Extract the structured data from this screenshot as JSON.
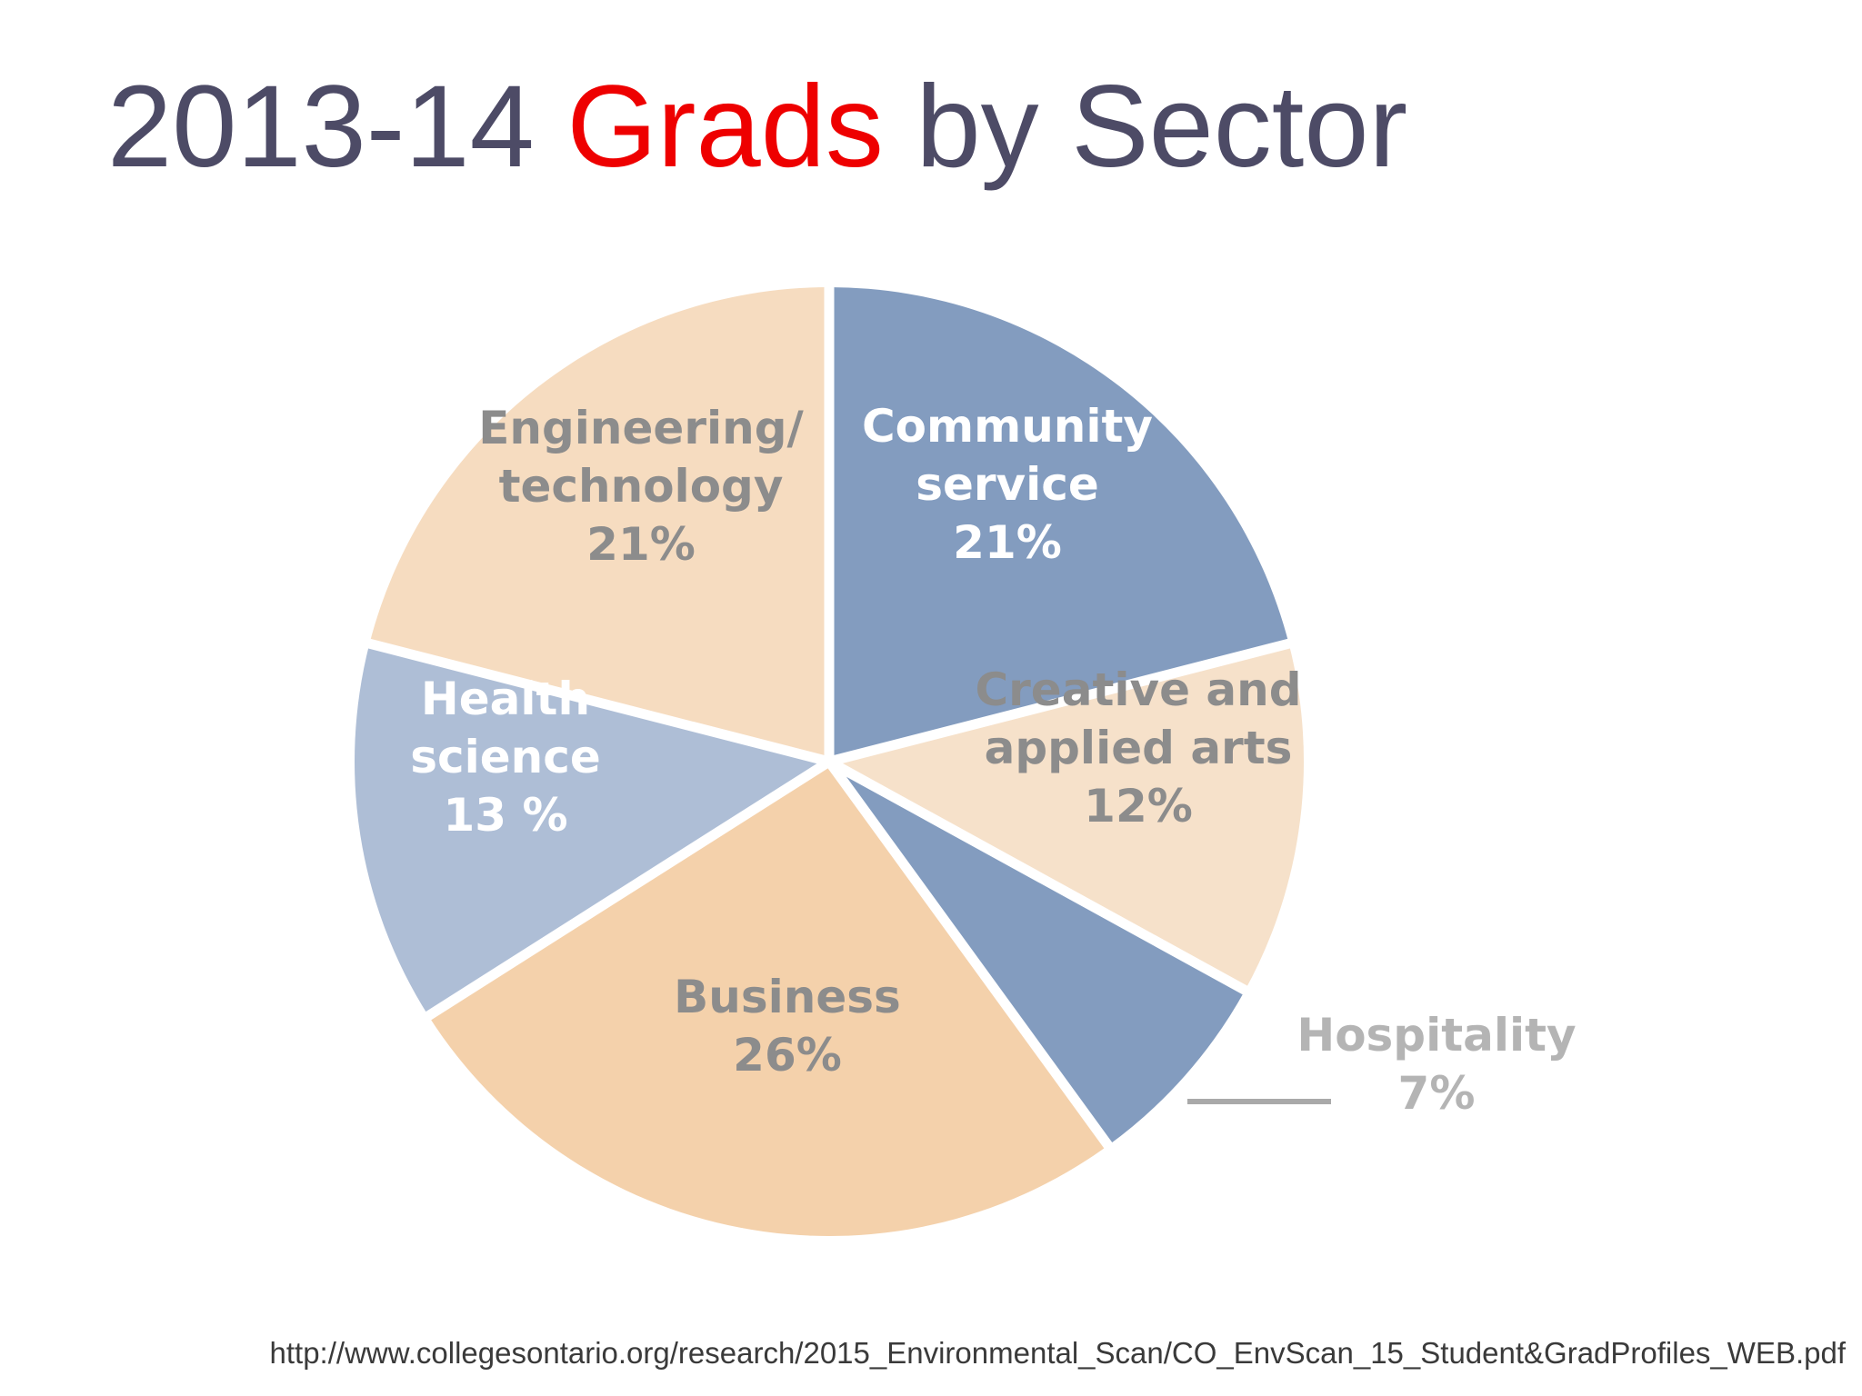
{
  "title": {
    "before": "2013-14",
    "highlight": "Grads",
    "after": "by Sector",
    "highlight_color": "#ee0000",
    "text_color": "#4d4b66"
  },
  "source_url": "http://www.collegesontario.org/research/2015_Environmental_Scan/CO_EnvScan_15_Student&GradProfiles_WEB.pdf",
  "chart_data": {
    "type": "pie",
    "title": "2013-14 Grads by Sector",
    "start_angle_deg": 0,
    "direction": "clockwise",
    "unit": "%",
    "slices": [
      {
        "name": "Community service",
        "label_lines": [
          "Community",
          "service",
          "21%"
        ],
        "value": 21,
        "color": "#839cbf",
        "label_color": "#ffffff"
      },
      {
        "name": "Creative and applied arts",
        "label_lines": [
          "Creative and",
          "applied arts",
          "12%"
        ],
        "value": 12,
        "color": "#f6e1ca",
        "label_color": "#8c8c8c"
      },
      {
        "name": "Hospitality",
        "label_lines": [
          "Hospitality",
          "7%"
        ],
        "value": 7,
        "color": "#839cbf",
        "label_color": "#b4b4b4",
        "external_label": true
      },
      {
        "name": "Business",
        "label_lines": [
          "Business",
          "26%"
        ],
        "value": 26,
        "color": "#f4d1ab",
        "label_color": "#8c8c8c"
      },
      {
        "name": "Health science",
        "label_lines": [
          "Health",
          "science",
          "13 %"
        ],
        "value": 13,
        "color": "#aebed6",
        "label_color": "#ffffff"
      },
      {
        "name": "Engineering/ technology",
        "label_lines": [
          "Engineering/",
          "technology",
          "21%"
        ],
        "value": 21,
        "color": "#f6dcc0",
        "label_color": "#8c8c8c"
      }
    ]
  }
}
